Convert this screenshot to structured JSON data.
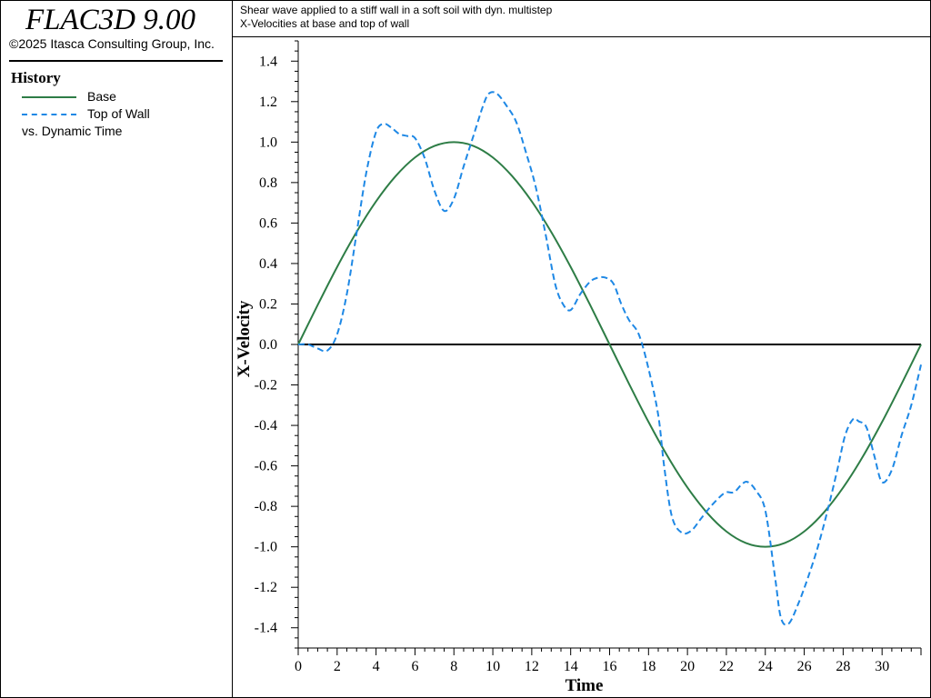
{
  "app": {
    "title": "FLAC3D 9.00",
    "copyright": "©2025 Itasca Consulting Group, Inc."
  },
  "legend": {
    "heading": "History",
    "items": [
      {
        "label": "Base",
        "color": "#2e7d46",
        "style": "solid"
      },
      {
        "label": "Top of Wall",
        "color": "#1e88e5",
        "style": "dashed"
      }
    ],
    "vs_label": "vs. Dynamic Time"
  },
  "plot": {
    "title_line1": "Shear wave applied to a stiff wall in a soft soil with dyn. multistep",
    "title_line2": "X-Velocities at base and top of wall"
  },
  "chart_data": {
    "type": "line",
    "xlabel": "Time",
    "ylabel": "X-Velocity",
    "xlim": [
      0,
      32
    ],
    "ylim": [
      -1.5,
      1.5
    ],
    "xticks": [
      0,
      2,
      4,
      6,
      8,
      10,
      12,
      14,
      16,
      18,
      20,
      22,
      24,
      26,
      28,
      30
    ],
    "yticks": [
      1.4,
      1.2,
      1.0,
      0.8,
      0.6,
      0.4,
      0.2,
      0.0,
      -0.2,
      -0.4,
      -0.6,
      -0.8,
      -1.0,
      -1.2,
      -1.4
    ],
    "ytick_labels": [
      "1.4",
      "1.2",
      "1.0",
      "0.8",
      "0.6",
      "0.4",
      "0.2",
      "0.0",
      "-0.2",
      "-0.4",
      "-0.6",
      "-0.8",
      "-1.0",
      "-1.2",
      "-1.4"
    ],
    "grid": false,
    "zero_line": true,
    "series": [
      {
        "name": "Base",
        "color": "#2e7d46",
        "style": "solid",
        "x": [
          0,
          1,
          2,
          3,
          4,
          5,
          6,
          7,
          8,
          9,
          10,
          11,
          12,
          13,
          14,
          15,
          16,
          17,
          18,
          19,
          20,
          21,
          22,
          23,
          24,
          25,
          26,
          27,
          28,
          29,
          30,
          31,
          32
        ],
        "y": [
          0,
          0.195,
          0.383,
          0.556,
          0.707,
          0.831,
          0.924,
          0.981,
          1.0,
          0.981,
          0.924,
          0.831,
          0.707,
          0.556,
          0.383,
          0.195,
          0,
          -0.195,
          -0.383,
          -0.556,
          -0.707,
          -0.831,
          -0.924,
          -0.981,
          -1.0,
          -0.981,
          -0.924,
          -0.831,
          -0.707,
          -0.556,
          -0.383,
          -0.195,
          0
        ]
      },
      {
        "name": "Top of Wall",
        "color": "#1e88e5",
        "style": "dashed",
        "x": [
          0,
          0.5,
          1.0,
          1.5,
          2.0,
          2.5,
          3.0,
          3.5,
          4.0,
          4.4,
          4.8,
          5.2,
          5.6,
          6.0,
          6.5,
          7.0,
          7.5,
          8.0,
          8.5,
          9.0,
          9.5,
          9.8,
          10.2,
          10.7,
          11.2,
          11.7,
          12.2,
          12.7,
          13.2,
          13.6,
          14.0,
          14.5,
          15.0,
          15.4,
          15.8,
          16.2,
          16.6,
          17.0,
          17.5,
          18.0,
          18.5,
          18.8,
          19.2,
          19.7,
          20.2,
          20.7,
          21.2,
          21.7,
          22.0,
          22.4,
          22.8,
          23.1,
          23.5,
          24.0,
          24.5,
          24.8,
          25.2,
          25.7,
          26.2,
          26.7,
          27.2,
          27.7,
          28.1,
          28.5,
          28.8,
          29.2,
          29.6,
          30.0,
          30.5,
          31.0,
          31.5,
          32.0
        ],
        "y": [
          0,
          0.0,
          -0.02,
          -0.03,
          0.05,
          0.25,
          0.55,
          0.85,
          1.05,
          1.09,
          1.07,
          1.04,
          1.03,
          1.02,
          0.92,
          0.76,
          0.66,
          0.72,
          0.88,
          1.03,
          1.18,
          1.24,
          1.24,
          1.18,
          1.1,
          0.95,
          0.78,
          0.55,
          0.3,
          0.2,
          0.17,
          0.25,
          0.31,
          0.33,
          0.33,
          0.3,
          0.2,
          0.12,
          0.05,
          -0.12,
          -0.35,
          -0.6,
          -0.85,
          -0.93,
          -0.92,
          -0.86,
          -0.8,
          -0.75,
          -0.73,
          -0.73,
          -0.69,
          -0.68,
          -0.72,
          -0.82,
          -1.15,
          -1.35,
          -1.38,
          -1.28,
          -1.15,
          -1.0,
          -0.82,
          -0.62,
          -0.45,
          -0.37,
          -0.38,
          -0.41,
          -0.55,
          -0.68,
          -0.62,
          -0.45,
          -0.3,
          -0.1
        ]
      }
    ]
  }
}
